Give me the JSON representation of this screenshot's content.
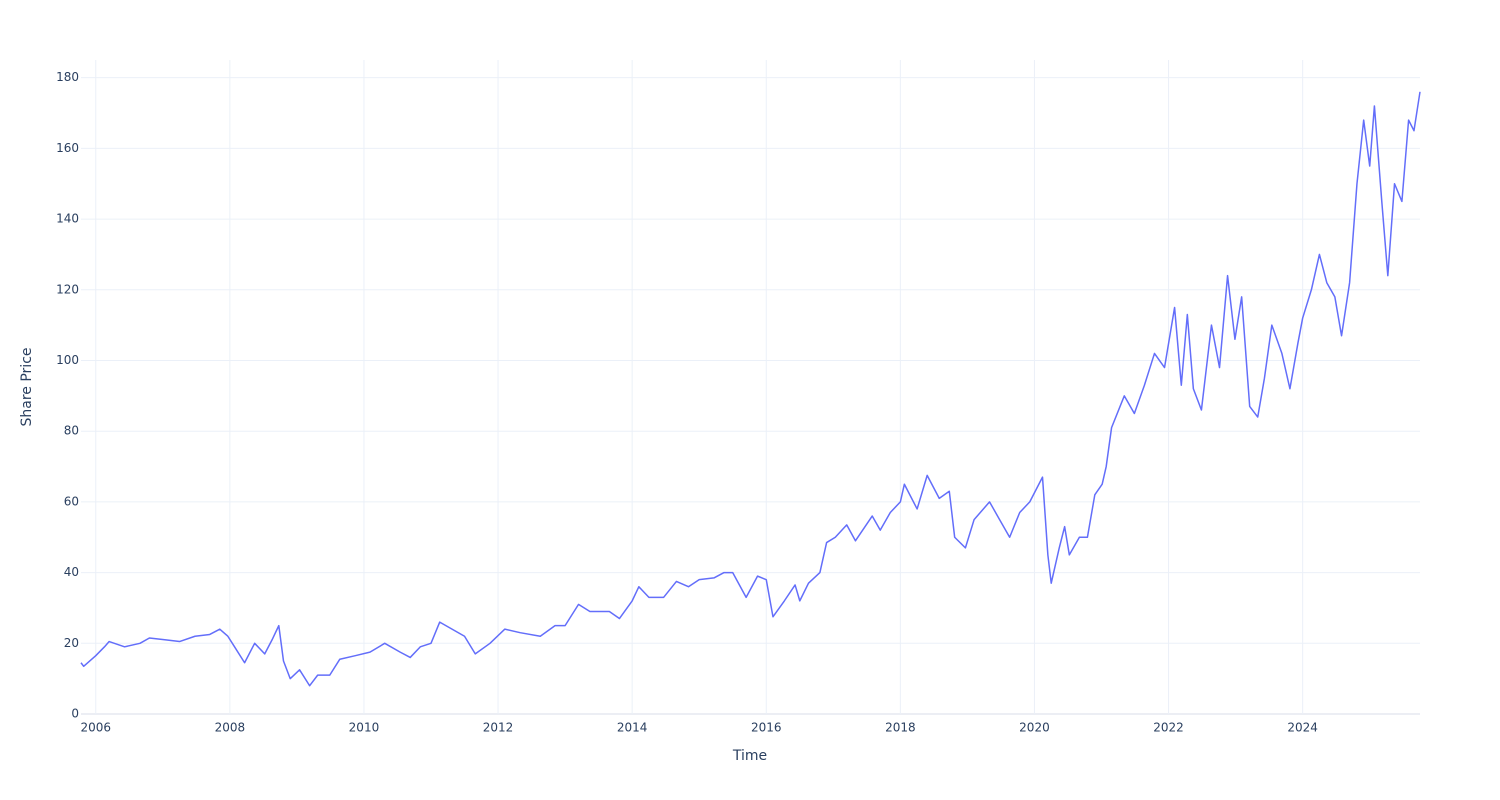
{
  "chart_data": {
    "type": "line",
    "x_label": "Time",
    "y_label": "Share Price",
    "color": "#636efa",
    "grid": true,
    "xlim": [
      2005.78,
      2025.75
    ],
    "xticks": [
      2006,
      2008,
      2010,
      2012,
      2014,
      2016,
      2018,
      2020,
      2022,
      2024
    ],
    "ylim": [
      0,
      185
    ],
    "yticks": [
      0,
      20,
      40,
      60,
      80,
      100,
      120,
      140,
      160,
      180
    ],
    "x": [
      2005.78,
      2005.82,
      2006.0,
      2006.13,
      2006.2,
      2006.43,
      2006.66,
      2006.8,
      2007.03,
      2007.25,
      2007.48,
      2007.7,
      2007.85,
      2007.97,
      2008.07,
      2008.22,
      2008.37,
      2008.52,
      2008.63,
      2008.73,
      2008.8,
      2008.9,
      2009.04,
      2009.19,
      2009.31,
      2009.49,
      2009.64,
      2009.87,
      2010.09,
      2010.31,
      2010.54,
      2010.69,
      2010.84,
      2011.0,
      2011.13,
      2011.5,
      2011.66,
      2011.88,
      2012.1,
      2012.33,
      2012.63,
      2012.85,
      2013.0,
      2013.2,
      2013.37,
      2013.66,
      2013.81,
      2014.0,
      2014.1,
      2014.25,
      2014.47,
      2014.66,
      2014.84,
      2015.0,
      2015.22,
      2015.37,
      2015.5,
      2015.7,
      2015.87,
      2016.0,
      2016.1,
      2016.27,
      2016.43,
      2016.5,
      2016.63,
      2016.8,
      2016.9,
      2017.03,
      2017.2,
      2017.33,
      2017.58,
      2017.7,
      2017.85,
      2018.0,
      2018.06,
      2018.25,
      2018.4,
      2018.58,
      2018.73,
      2018.81,
      2018.97,
      2019.1,
      2019.33,
      2019.48,
      2019.63,
      2019.78,
      2019.93,
      2020.12,
      2020.2,
      2020.25,
      2020.37,
      2020.45,
      2020.52,
      2020.67,
      2020.79,
      2020.9,
      2021.01,
      2021.07,
      2021.15,
      2021.34,
      2021.49,
      2021.64,
      2021.79,
      2021.94,
      2022.09,
      2022.19,
      2022.28,
      2022.37,
      2022.49,
      2022.64,
      2022.76,
      2022.88,
      2022.99,
      2023.09,
      2023.21,
      2023.33,
      2023.43,
      2023.54,
      2023.69,
      2023.81,
      2023.93,
      2024.0,
      2024.13,
      2024.25,
      2024.36,
      2024.48,
      2024.58,
      2024.7,
      2024.81,
      2024.91,
      2025.0,
      2025.07,
      2025.18,
      2025.27,
      2025.37,
      2025.48,
      2025.58,
      2025.66,
      2025.75
    ],
    "values": [
      14.5,
      13.5,
      16.5,
      19,
      20.5,
      19,
      20,
      21.5,
      21,
      20.5,
      22,
      22.5,
      24,
      22,
      19,
      14.5,
      20,
      17,
      21,
      25,
      15,
      10,
      12.5,
      8,
      11,
      11,
      15.5,
      16.5,
      17.5,
      20,
      17.5,
      16,
      19,
      20,
      26,
      22,
      17,
      20,
      24,
      23,
      22,
      25,
      25,
      31,
      29,
      29,
      27,
      32,
      36,
      33,
      33,
      37.5,
      36,
      38,
      38.5,
      40,
      40,
      33,
      39,
      38,
      27.5,
      32,
      36.5,
      32,
      37,
      40,
      48.5,
      50,
      53.5,
      49,
      56,
      52,
      57,
      60,
      65,
      58,
      67.5,
      61,
      63,
      50,
      47,
      55,
      60,
      55,
      50,
      57,
      60,
      67,
      45,
      37,
      47,
      53,
      45,
      50,
      50,
      62,
      65,
      70,
      81,
      90,
      85,
      93,
      102,
      98,
      115,
      93,
      113,
      92,
      86,
      110,
      98,
      124,
      106,
      118,
      87,
      84,
      95,
      110,
      102,
      92,
      105,
      112,
      120,
      130,
      122,
      118,
      107,
      122,
      150,
      168,
      155,
      172,
      145,
      124,
      150,
      145,
      168,
      165,
      176
    ]
  }
}
